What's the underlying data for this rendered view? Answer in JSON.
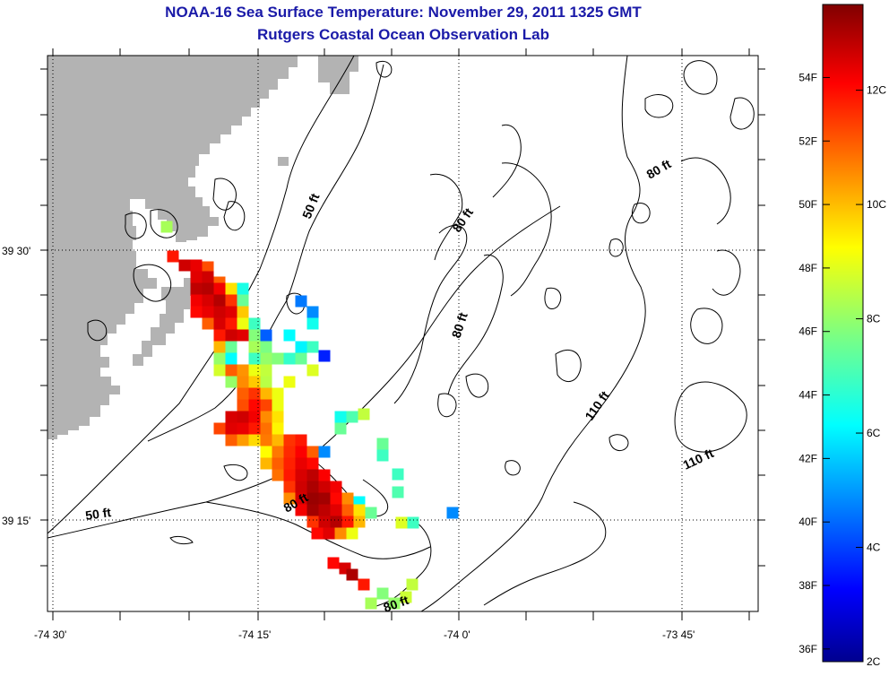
{
  "title": "NOAA-16 Sea Surface Temperature:  November 29, 2011 1325 GMT",
  "subtitle": "Rutgers Coastal Ocean Observation Lab",
  "colors": {
    "title": "#1a1aa8",
    "land": "#b3b3b3",
    "contour": "#000000",
    "grid": "#000000"
  },
  "axes": {
    "x_ticks": [
      "-74 30'",
      "-74 15'",
      "-74 0'",
      "-73 45'"
    ],
    "y_ticks": [
      "39 30'",
      "39 15'"
    ]
  },
  "contour_labels": [
    "50 ft",
    "80 ft",
    "80 ft",
    "80 ft",
    "80 ft",
    "110 ft",
    "110 ft",
    "50 ft",
    "80 ft",
    "80 ft"
  ],
  "colorbar": {
    "fahrenheit_labels": [
      "54F",
      "52F",
      "50F",
      "48F",
      "46F",
      "44F",
      "42F",
      "40F",
      "38F",
      "36F"
    ],
    "celsius_labels": [
      "12C",
      "10C",
      "8C",
      "6C",
      "4C",
      "2C"
    ],
    "range_c": [
      2,
      13.5
    ],
    "colormap": "jet"
  },
  "sst_pixels_c": [
    [
      186,
      253,
      8.2
    ],
    [
      193,
      286,
      11.8
    ],
    [
      206,
      296,
      12.6
    ],
    [
      219,
      296,
      12.3
    ],
    [
      232,
      298,
      11.2
    ],
    [
      219,
      309,
      12.4
    ],
    [
      232,
      309,
      12.6
    ],
    [
      245,
      315,
      11.0
    ],
    [
      271,
      322,
      6.6
    ],
    [
      219,
      322,
      12.8
    ],
    [
      232,
      322,
      12.9
    ],
    [
      245,
      322,
      12.2
    ],
    [
      258,
      322,
      9.5
    ],
    [
      219,
      335,
      12.2
    ],
    [
      232,
      335,
      12.5
    ],
    [
      245,
      335,
      12.9
    ],
    [
      258,
      335,
      11.5
    ],
    [
      271,
      335,
      7.5
    ],
    [
      219,
      348,
      12.0
    ],
    [
      232,
      348,
      12.3
    ],
    [
      245,
      348,
      12.6
    ],
    [
      258,
      348,
      12.4
    ],
    [
      271,
      348,
      9.8
    ],
    [
      349,
      348,
      5.0
    ],
    [
      336,
      336,
      4.8
    ],
    [
      232,
      361,
      11.0
    ],
    [
      245,
      361,
      12.5
    ],
    [
      258,
      361,
      11.8
    ],
    [
      271,
      361,
      9.0
    ],
    [
      284,
      361,
      7.0
    ],
    [
      349,
      361,
      6.5
    ],
    [
      245,
      374,
      11.8
    ],
    [
      258,
      374,
      12.6
    ],
    [
      271,
      374,
      12.4
    ],
    [
      284,
      374,
      7.8
    ],
    [
      297,
      374,
      4.5
    ],
    [
      323,
      374,
      6.3
    ],
    [
      245,
      387,
      10.0
    ],
    [
      258,
      387,
      7.5
    ],
    [
      284,
      387,
      8.2
    ],
    [
      297,
      387,
      7.7
    ],
    [
      336,
      387,
      6.2
    ],
    [
      349,
      387,
      7.0
    ],
    [
      362,
      397,
      3.8
    ],
    [
      245,
      400,
      8.0
    ],
    [
      258,
      400,
      6.3
    ],
    [
      284,
      400,
      7.0
    ],
    [
      297,
      400,
      8.0
    ],
    [
      310,
      400,
      7.8
    ],
    [
      323,
      400,
      6.9
    ],
    [
      336,
      400,
      7.5
    ],
    [
      245,
      413,
      8.7
    ],
    [
      258,
      413,
      11.0
    ],
    [
      271,
      413,
      10.4
    ],
    [
      284,
      413,
      9.0
    ],
    [
      297,
      413,
      8.5
    ],
    [
      349,
      413,
      8.8
    ],
    [
      258,
      426,
      8.0
    ],
    [
      271,
      426,
      10.5
    ],
    [
      284,
      426,
      9.8
    ],
    [
      297,
      426,
      8.4
    ],
    [
      323,
      426,
      9.0
    ],
    [
      271,
      439,
      11.0
    ],
    [
      284,
      439,
      11.5
    ],
    [
      297,
      439,
      10.0
    ],
    [
      310,
      439,
      9.0
    ],
    [
      271,
      452,
      11.2
    ],
    [
      284,
      452,
      12.0
    ],
    [
      297,
      452,
      11.3
    ],
    [
      310,
      452,
      9.0
    ],
    [
      380,
      465,
      6.5
    ],
    [
      393,
      465,
      7.2
    ],
    [
      406,
      462,
      8.5
    ],
    [
      258,
      465,
      12.5
    ],
    [
      271,
      465,
      12.6
    ],
    [
      284,
      465,
      12.2
    ],
    [
      297,
      465,
      10.5
    ],
    [
      310,
      465,
      9.5
    ],
    [
      380,
      478,
      7.5
    ],
    [
      245,
      478,
      11.3
    ],
    [
      258,
      478,
      12.4
    ],
    [
      271,
      478,
      12.3
    ],
    [
      284,
      478,
      11.8
    ],
    [
      297,
      478,
      10.8
    ],
    [
      310,
      478,
      9.3
    ],
    [
      258,
      491,
      11.0
    ],
    [
      271,
      491,
      10.3
    ],
    [
      284,
      491,
      9.6
    ],
    [
      297,
      491,
      10.7
    ],
    [
      310,
      491,
      10.0
    ],
    [
      323,
      491,
      11.5
    ],
    [
      336,
      491,
      11.8
    ],
    [
      427,
      495,
      7.5
    ],
    [
      297,
      504,
      9.2
    ],
    [
      310,
      504,
      10.7
    ],
    [
      323,
      504,
      11.6
    ],
    [
      336,
      504,
      12.1
    ],
    [
      349,
      504,
      11.0
    ],
    [
      362,
      504,
      5.0
    ],
    [
      427,
      508,
      7.0
    ],
    [
      297,
      517,
      10.0
    ],
    [
      310,
      517,
      11.0
    ],
    [
      323,
      517,
      11.7
    ],
    [
      336,
      517,
      12.3
    ],
    [
      349,
      517,
      12.0
    ],
    [
      444,
      529,
      7.0
    ],
    [
      310,
      530,
      10.8
    ],
    [
      323,
      530,
      11.8
    ],
    [
      336,
      530,
      12.5
    ],
    [
      349,
      530,
      12.8
    ],
    [
      362,
      530,
      12.1
    ],
    [
      323,
      543,
      11.5
    ],
    [
      336,
      543,
      12.6
    ],
    [
      349,
      543,
      13.0
    ],
    [
      362,
      543,
      12.6
    ],
    [
      375,
      543,
      12.2
    ],
    [
      444,
      549,
      7.2
    ],
    [
      323,
      556,
      10.5
    ],
    [
      336,
      556,
      12.5
    ],
    [
      349,
      556,
      13.2
    ],
    [
      362,
      556,
      13.1
    ],
    [
      375,
      556,
      12.0
    ],
    [
      388,
      556,
      10.5
    ],
    [
      401,
      560,
      6.3
    ],
    [
      336,
      569,
      12.2
    ],
    [
      349,
      569,
      13.1
    ],
    [
      362,
      569,
      12.8
    ],
    [
      375,
      569,
      12.4
    ],
    [
      388,
      569,
      11.0
    ],
    [
      401,
      569,
      9.5
    ],
    [
      414,
      572,
      7.5
    ],
    [
      505,
      572,
      5.0
    ],
    [
      349,
      582,
      11.5
    ],
    [
      362,
      582,
      12.6
    ],
    [
      375,
      582,
      12.9
    ],
    [
      388,
      582,
      11.8
    ],
    [
      401,
      582,
      10.0
    ],
    [
      448,
      583,
      8.8
    ],
    [
      461,
      583,
      7.0
    ],
    [
      354,
      595,
      12.0
    ],
    [
      367,
      595,
      12.4
    ],
    [
      380,
      595,
      10.5
    ],
    [
      393,
      595,
      9.0
    ],
    [
      372,
      628,
      12.0
    ],
    [
      385,
      634,
      12.5
    ],
    [
      393,
      641,
      13.0
    ],
    [
      406,
      652,
      11.8
    ],
    [
      460,
      652,
      8.5
    ],
    [
      427,
      662,
      7.8
    ],
    [
      414,
      673,
      8.2
    ],
    [
      440,
      673,
      8.0
    ],
    [
      453,
      666,
      8.6
    ]
  ]
}
